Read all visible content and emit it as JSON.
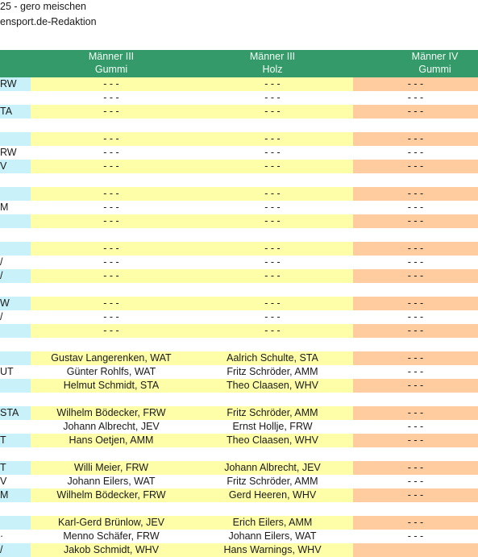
{
  "header": {
    "line1": "25 - gero meischen",
    "line2": "ensport.de-Redaktion"
  },
  "columns": [
    {
      "line1": "",
      "line2": ""
    },
    {
      "line1": "Männer III",
      "line2": "Gummi"
    },
    {
      "line1": "Männer III",
      "line2": "Holz"
    },
    {
      "line1": "Männer IV",
      "line2": "Gummi"
    }
  ],
  "colors": {
    "header_green": "#359a6a",
    "cyan": "#c9f1f9",
    "yellow": "#fffea8",
    "orange": "#fecc9e"
  },
  "rows": [
    {
      "c0": "RW",
      "c1": "- - -",
      "c2": "- - -",
      "c3": "- - -",
      "shade": true
    },
    {
      "c0": "",
      "c1": "- - -",
      "c2": "- - -",
      "c3": "- - -",
      "shade": false
    },
    {
      "c0": "TA",
      "c1": "- - -",
      "c2": "- - -",
      "c3": "- - -",
      "shade": true
    },
    {
      "gap": true
    },
    {
      "c0": "",
      "c1": "- - -",
      "c2": "- - -",
      "c3": "- - -",
      "shade": true
    },
    {
      "c0": "RW",
      "c1": "- - -",
      "c2": "- - -",
      "c3": "- - -",
      "shade": false
    },
    {
      "c0": "V",
      "c1": "- - -",
      "c2": "- - -",
      "c3": "- - -",
      "shade": true
    },
    {
      "gap": true
    },
    {
      "c0": "",
      "c1": "- - -",
      "c2": "- - -",
      "c3": "- - -",
      "shade": true
    },
    {
      "c0": "M",
      "c1": "- - -",
      "c2": "- - -",
      "c3": "- - -",
      "shade": false
    },
    {
      "c0": "",
      "c1": "- - -",
      "c2": "- - -",
      "c3": "- - -",
      "shade": true
    },
    {
      "gap": true
    },
    {
      "c0": "",
      "c1": "- - -",
      "c2": "- - -",
      "c3": "- - -",
      "shade": true
    },
    {
      "c0": "/",
      "c1": "- - -",
      "c2": "- - -",
      "c3": "- - -",
      "shade": false
    },
    {
      "c0": "/",
      "c1": "- - -",
      "c2": "- - -",
      "c3": "- - -",
      "shade": true
    },
    {
      "gap": true
    },
    {
      "c0": "W",
      "c1": "- - -",
      "c2": "- - -",
      "c3": "- - -",
      "shade": true
    },
    {
      "c0": "/",
      "c1": "- - -",
      "c2": "- - -",
      "c3": "- - -",
      "shade": false
    },
    {
      "c0": "",
      "c1": "- - -",
      "c2": "- - -",
      "c3": "- - -",
      "shade": true
    },
    {
      "gap": true
    },
    {
      "c0": "",
      "c1": "Gustav Langerenken, WAT",
      "c2": "Aalrich Schulte, STA",
      "c3": "- - -",
      "shade": true
    },
    {
      "c0": "UT",
      "c1": "Günter Rohlfs, WAT",
      "c2": "Fritz Schröder,  AMM",
      "c3": "- - -",
      "shade": false
    },
    {
      "c0": "",
      "c1": "Helmut Schmidt, STA",
      "c2": "Theo Claasen, WHV",
      "c3": "- - -",
      "shade": true
    },
    {
      "gap": true
    },
    {
      "c0": "STA",
      "c1": "Wilhelm Bödecker, FRW",
      "c2": "Fritz Schröder, AMM",
      "c3": "- - -",
      "shade": true
    },
    {
      "c0": "",
      "c1": "Johann Albrecht, JEV",
      "c2": "Ernst Hollje, FRW",
      "c3": "- - -",
      "shade": false
    },
    {
      "c0": "T",
      "c1": "Hans Oetjen, AMM",
      "c2": "Theo Claasen, WHV",
      "c3": "- - -",
      "shade": true
    },
    {
      "gap": true
    },
    {
      "c0": "T",
      "c1": "Willi Meier, FRW",
      "c2": "Johann Albrecht, JEV",
      "c3": "- - -",
      "shade": true
    },
    {
      "c0": "V",
      "c1": "Johann Eilers, WAT",
      "c2": "Fritz Schröder, AMM",
      "c3": "- - -",
      "shade": false
    },
    {
      "c0": "M",
      "c1": "Wilhelm Bödecker, FRW",
      "c2": "Gerd Heeren, WHV",
      "c3": "- - -",
      "shade": true
    },
    {
      "gap": true
    },
    {
      "c0": "",
      "c1": "Karl-Gerd Brünlow, JEV",
      "c2": "Erich Eilers, AMM",
      "c3": "- - -",
      "shade": true
    },
    {
      "c0": "·",
      "c1": "Menno Schäfer, FRW",
      "c2": "Johann Eilers, WAT",
      "c3": "- - -",
      "shade": false
    },
    {
      "c0": "/",
      "c1": "Jakob Schmidt, WHV",
      "c2": "Hans Warnings, WHV",
      "c3": "",
      "shade": true
    }
  ]
}
